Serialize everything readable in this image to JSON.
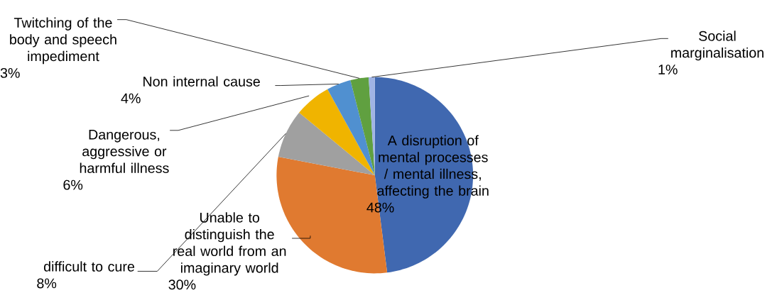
{
  "chart_data": {
    "type": "pie",
    "categories": [
      "A disruption of mental processes / mental illness, affecting the brain",
      "Unable to distinguish the real world from an imaginary world",
      "difficult to cure",
      "Dangerous, aggressive or harmful illness",
      "Non internal cause",
      "Twitching of the body and speech impediment",
      "Social marginalisation"
    ],
    "values": [
      48,
      30,
      8,
      6,
      4,
      3,
      1
    ],
    "value_labels": [
      "48%",
      "30%",
      "8%",
      "6%",
      "4%",
      "3%",
      "1%"
    ],
    "colors": [
      "#4068b0",
      "#e07a30",
      "#a0a0a0",
      "#f0b400",
      "#5090d0",
      "#60a040",
      "#a0b4e4"
    ]
  }
}
